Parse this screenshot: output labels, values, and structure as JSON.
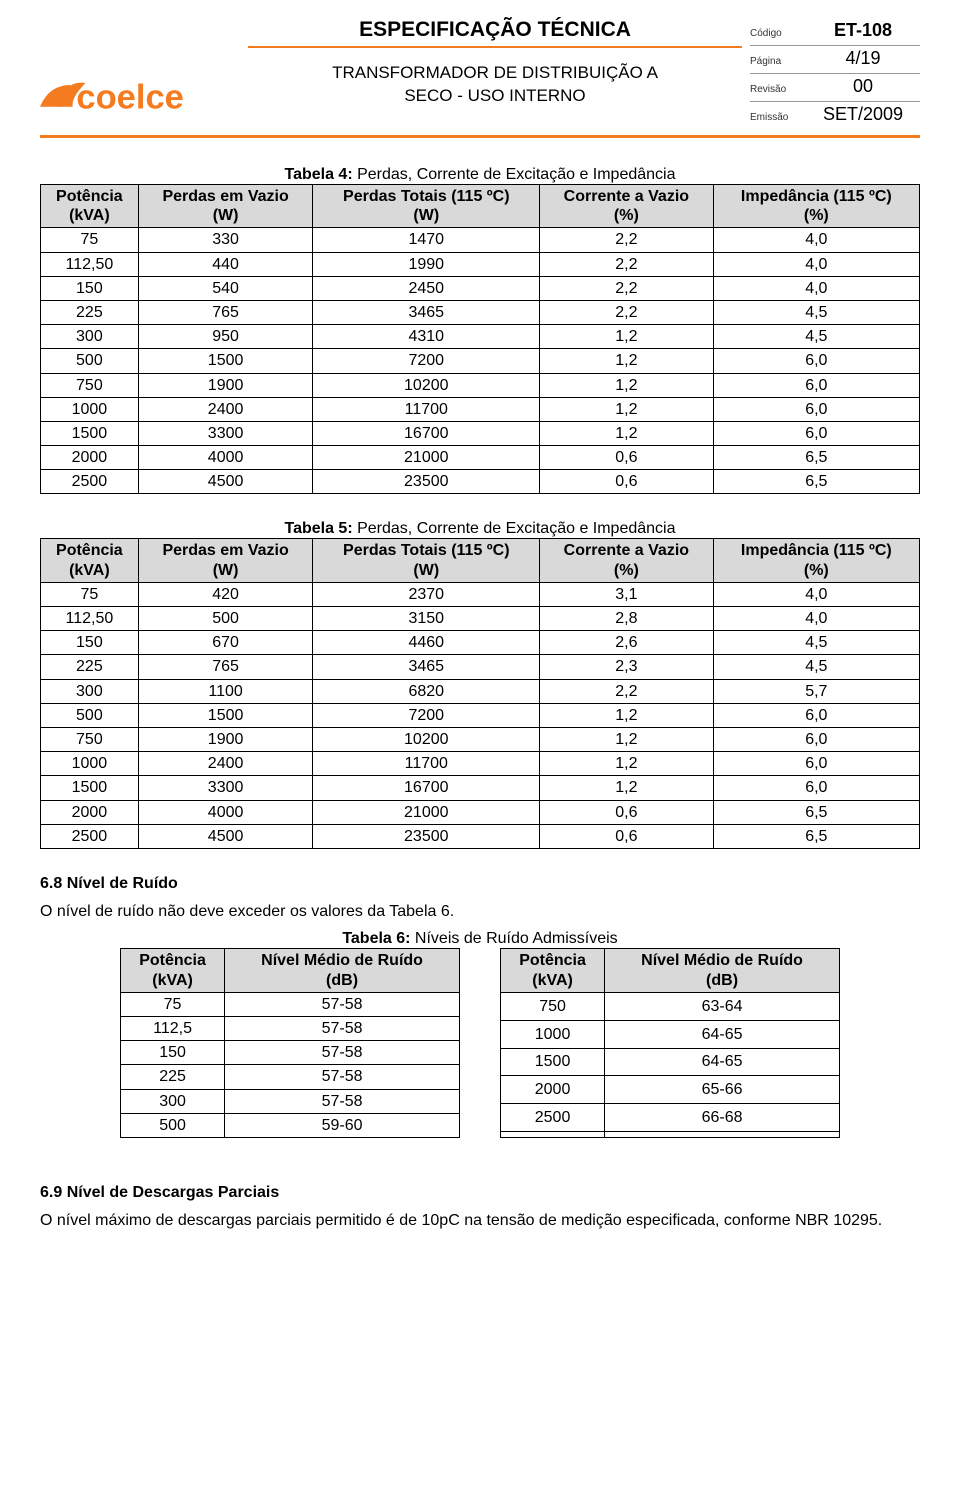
{
  "brand_color": "#f47b20",
  "header": {
    "spec_title": "ESPECIFICAÇÃO TÉCNICA",
    "sub_title_1": "TRANSFORMADOR DE DISTRIBUIÇÃO A",
    "sub_title_2": "SECO - USO INTERNO",
    "meta": {
      "codigo_label": "Código",
      "codigo_value": "ET-108",
      "pagina_label": "Página",
      "pagina_value": "4/19",
      "revisao_label": "Revisão",
      "revisao_value": "00",
      "emissao_label": "Emissão",
      "emissao_value": "SET/2009"
    }
  },
  "table4": {
    "caption_bold": "Tabela 4:",
    "caption_rest": " Perdas, Corrente de Excitação e Impedância",
    "cols": [
      {
        "l1": "Potência",
        "l2": "(kVA)"
      },
      {
        "l1": "Perdas em Vazio",
        "l2": "(W)"
      },
      {
        "l1": "Perdas Totais (115 ºC)",
        "l2": "(W)"
      },
      {
        "l1": "Corrente a Vazio",
        "l2": "(%)"
      },
      {
        "l1": "Impedância (115 ºC)",
        "l2": "(%)"
      }
    ],
    "rows": [
      [
        "75",
        "330",
        "1470",
        "2,2",
        "4,0"
      ],
      [
        "112,50",
        "440",
        "1990",
        "2,2",
        "4,0"
      ],
      [
        "150",
        "540",
        "2450",
        "2,2",
        "4,0"
      ],
      [
        "225",
        "765",
        "3465",
        "2,2",
        "4,5"
      ],
      [
        "300",
        "950",
        "4310",
        "1,2",
        "4,5"
      ],
      [
        "500",
        "1500",
        "7200",
        "1,2",
        "6,0"
      ],
      [
        "750",
        "1900",
        "10200",
        "1,2",
        "6,0"
      ],
      [
        "1000",
        "2400",
        "11700",
        "1,2",
        "6,0"
      ],
      [
        "1500",
        "3300",
        "16700",
        "1,2",
        "6,0"
      ],
      [
        "2000",
        "4000",
        "21000",
        "0,6",
        "6,5"
      ],
      [
        "2500",
        "4500",
        "23500",
        "0,6",
        "6,5"
      ]
    ]
  },
  "table5": {
    "caption_bold": "Tabela 5:",
    "caption_rest": " Perdas, Corrente de Excitação e Impedância",
    "cols": [
      {
        "l1": "Potência",
        "l2": "(kVA)"
      },
      {
        "l1": "Perdas em Vazio",
        "l2": "(W)"
      },
      {
        "l1": "Perdas Totais (115 ºC)",
        "l2": "(W)"
      },
      {
        "l1": "Corrente a Vazio",
        "l2": "(%)"
      },
      {
        "l1": "Impedância (115 ºC)",
        "l2": "(%)"
      }
    ],
    "rows": [
      [
        "75",
        "420",
        "2370",
        "3,1",
        "4,0"
      ],
      [
        "112,50",
        "500",
        "3150",
        "2,8",
        "4,0"
      ],
      [
        "150",
        "670",
        "4460",
        "2,6",
        "4,5"
      ],
      [
        "225",
        "765",
        "3465",
        "2,3",
        "4,5"
      ],
      [
        "300",
        "1100",
        "6820",
        "2,2",
        "5,7"
      ],
      [
        "500",
        "1500",
        "7200",
        "1,2",
        "6,0"
      ],
      [
        "750",
        "1900",
        "10200",
        "1,2",
        "6,0"
      ],
      [
        "1000",
        "2400",
        "11700",
        "1,2",
        "6,0"
      ],
      [
        "1500",
        "3300",
        "16700",
        "1,2",
        "6,0"
      ],
      [
        "2000",
        "4000",
        "21000",
        "0,6",
        "6,5"
      ],
      [
        "2500",
        "4500",
        "23500",
        "0,6",
        "6,5"
      ]
    ]
  },
  "sect68": {
    "head": "6.8 Nível de Ruído",
    "para": "O nível de ruído não deve exceder os valores da Tabela 6."
  },
  "table6": {
    "caption_bold": "Tabela 6:",
    "caption_rest": " Níveis de Ruído Admissíveis",
    "cols": [
      {
        "l1": "Potência",
        "l2": "(kVA)"
      },
      {
        "l1": "Nível Médio de Ruído",
        "l2": "(dB)"
      }
    ],
    "left_rows": [
      [
        "75",
        "57-58"
      ],
      [
        "112,5",
        "57-58"
      ],
      [
        "150",
        "57-58"
      ],
      [
        "225",
        "57-58"
      ],
      [
        "300",
        "57-58"
      ],
      [
        "500",
        "59-60"
      ]
    ],
    "right_rows": [
      [
        "750",
        "63-64"
      ],
      [
        "1000",
        "64-65"
      ],
      [
        "1500",
        "64-65"
      ],
      [
        "2000",
        "65-66"
      ],
      [
        "2500",
        "66-68"
      ],
      [
        "",
        ""
      ]
    ]
  },
  "sect69": {
    "head": "6.9 Nível de Descargas Parciais",
    "para": "O nível máximo de descargas parciais permitido é de 10pC na tensão de medição especificada, conforme NBR 10295."
  }
}
